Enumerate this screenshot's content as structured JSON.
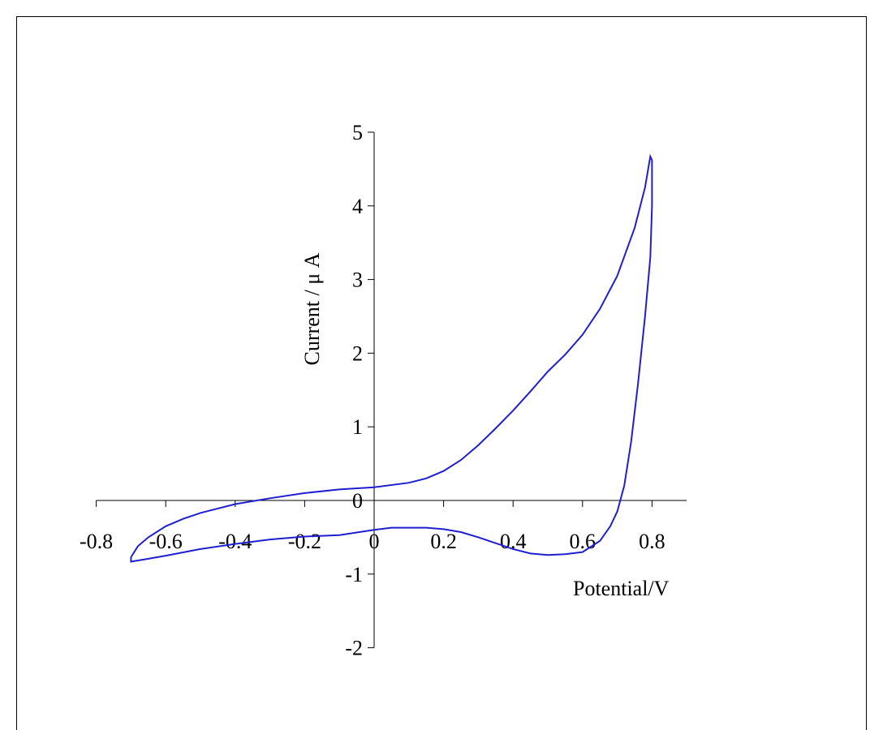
{
  "chart_data": {
    "type": "line",
    "title": "",
    "xlabel": "Potential/V",
    "ylabel": "Current / μ A",
    "xlim": [
      -0.8,
      0.9
    ],
    "ylim": [
      -2,
      5
    ],
    "x_ticks": [
      -0.8,
      -0.6,
      -0.4,
      -0.2,
      0,
      0.2,
      0.4,
      0.6,
      0.8
    ],
    "x_tick_labels": [
      "-0.8",
      "-0.6",
      "-0.4",
      "-0.2",
      "0",
      "0.2",
      "0.4",
      "0.6",
      "0.8"
    ],
    "y_ticks": [
      -2,
      -1,
      0,
      1,
      2,
      3,
      4,
      5
    ],
    "y_tick_labels": [
      "-2",
      "-1",
      "0",
      "1",
      "2",
      "3",
      "4",
      "5"
    ],
    "grid": false,
    "legend": "none",
    "line_color": "#1f1fd0",
    "series": [
      {
        "points": [
          [
            -0.7,
            -0.77
          ],
          [
            -0.68,
            -0.62
          ],
          [
            -0.65,
            -0.5
          ],
          [
            -0.6,
            -0.35
          ],
          [
            -0.55,
            -0.25
          ],
          [
            -0.5,
            -0.17
          ],
          [
            -0.4,
            -0.05
          ],
          [
            -0.3,
            0.03
          ],
          [
            -0.2,
            0.1
          ],
          [
            -0.1,
            0.15
          ],
          [
            0.0,
            0.18
          ],
          [
            0.1,
            0.24
          ],
          [
            0.15,
            0.3
          ],
          [
            0.2,
            0.4
          ],
          [
            0.25,
            0.55
          ],
          [
            0.3,
            0.75
          ],
          [
            0.35,
            0.98
          ],
          [
            0.4,
            1.22
          ],
          [
            0.45,
            1.48
          ],
          [
            0.5,
            1.75
          ],
          [
            0.55,
            1.98
          ],
          [
            0.6,
            2.25
          ],
          [
            0.65,
            2.6
          ],
          [
            0.7,
            3.05
          ],
          [
            0.75,
            3.7
          ],
          [
            0.78,
            4.25
          ],
          [
            0.795,
            4.67
          ],
          [
            0.8,
            4.62
          ],
          [
            0.8,
            4.0
          ],
          [
            0.795,
            3.3
          ],
          [
            0.78,
            2.5
          ],
          [
            0.76,
            1.6
          ],
          [
            0.74,
            0.8
          ],
          [
            0.72,
            0.2
          ],
          [
            0.7,
            -0.15
          ],
          [
            0.68,
            -0.35
          ],
          [
            0.65,
            -0.55
          ],
          [
            0.6,
            -0.7
          ],
          [
            0.55,
            -0.73
          ],
          [
            0.5,
            -0.74
          ],
          [
            0.45,
            -0.72
          ],
          [
            0.4,
            -0.66
          ],
          [
            0.35,
            -0.58
          ],
          [
            0.3,
            -0.5
          ],
          [
            0.25,
            -0.43
          ],
          [
            0.2,
            -0.39
          ],
          [
            0.15,
            -0.37
          ],
          [
            0.1,
            -0.37
          ],
          [
            0.05,
            -0.37
          ],
          [
            0.0,
            -0.4
          ],
          [
            -0.1,
            -0.47
          ],
          [
            -0.2,
            -0.49
          ],
          [
            -0.3,
            -0.53
          ],
          [
            -0.4,
            -0.59
          ],
          [
            -0.5,
            -0.66
          ],
          [
            -0.6,
            -0.75
          ],
          [
            -0.66,
            -0.8
          ],
          [
            -0.7,
            -0.83
          ],
          [
            -0.7,
            -0.77
          ]
        ]
      }
    ]
  }
}
